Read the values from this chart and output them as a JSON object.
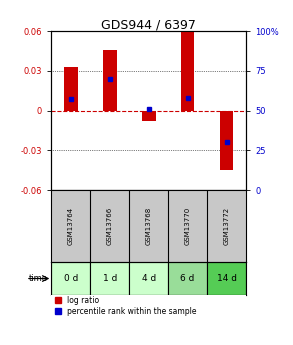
{
  "title": "GDS944 / 6397",
  "samples": [
    "GSM13764",
    "GSM13766",
    "GSM13768",
    "GSM13770",
    "GSM13772"
  ],
  "time_labels": [
    "0 d",
    "1 d",
    "4 d",
    "6 d",
    "14 d"
  ],
  "log_ratios": [
    0.033,
    0.046,
    -0.008,
    0.059,
    -0.045
  ],
  "percentile_ranks": [
    57,
    70,
    51,
    58,
    30
  ],
  "ylim": [
    -0.06,
    0.06
  ],
  "yticks_left": [
    -0.06,
    -0.03,
    0,
    0.03,
    0.06
  ],
  "yticks_right": [
    0,
    25,
    50,
    75,
    100
  ],
  "bar_color": "#cc0000",
  "pct_color": "#0000cc",
  "zero_line_color": "#cc0000",
  "grid_color": "#000000",
  "bg_plot": "#ffffff",
  "bg_gsm": "#c8c8c8",
  "time_row_colors": [
    "#ccffcc",
    "#ccffcc",
    "#ccffcc",
    "#99dd99",
    "#55cc55"
  ],
  "title_fontsize": 9,
  "tick_fontsize": 6,
  "gsm_fontsize": 5,
  "time_fontsize": 6.5,
  "legend_fontsize": 5.5,
  "bar_width": 0.35
}
